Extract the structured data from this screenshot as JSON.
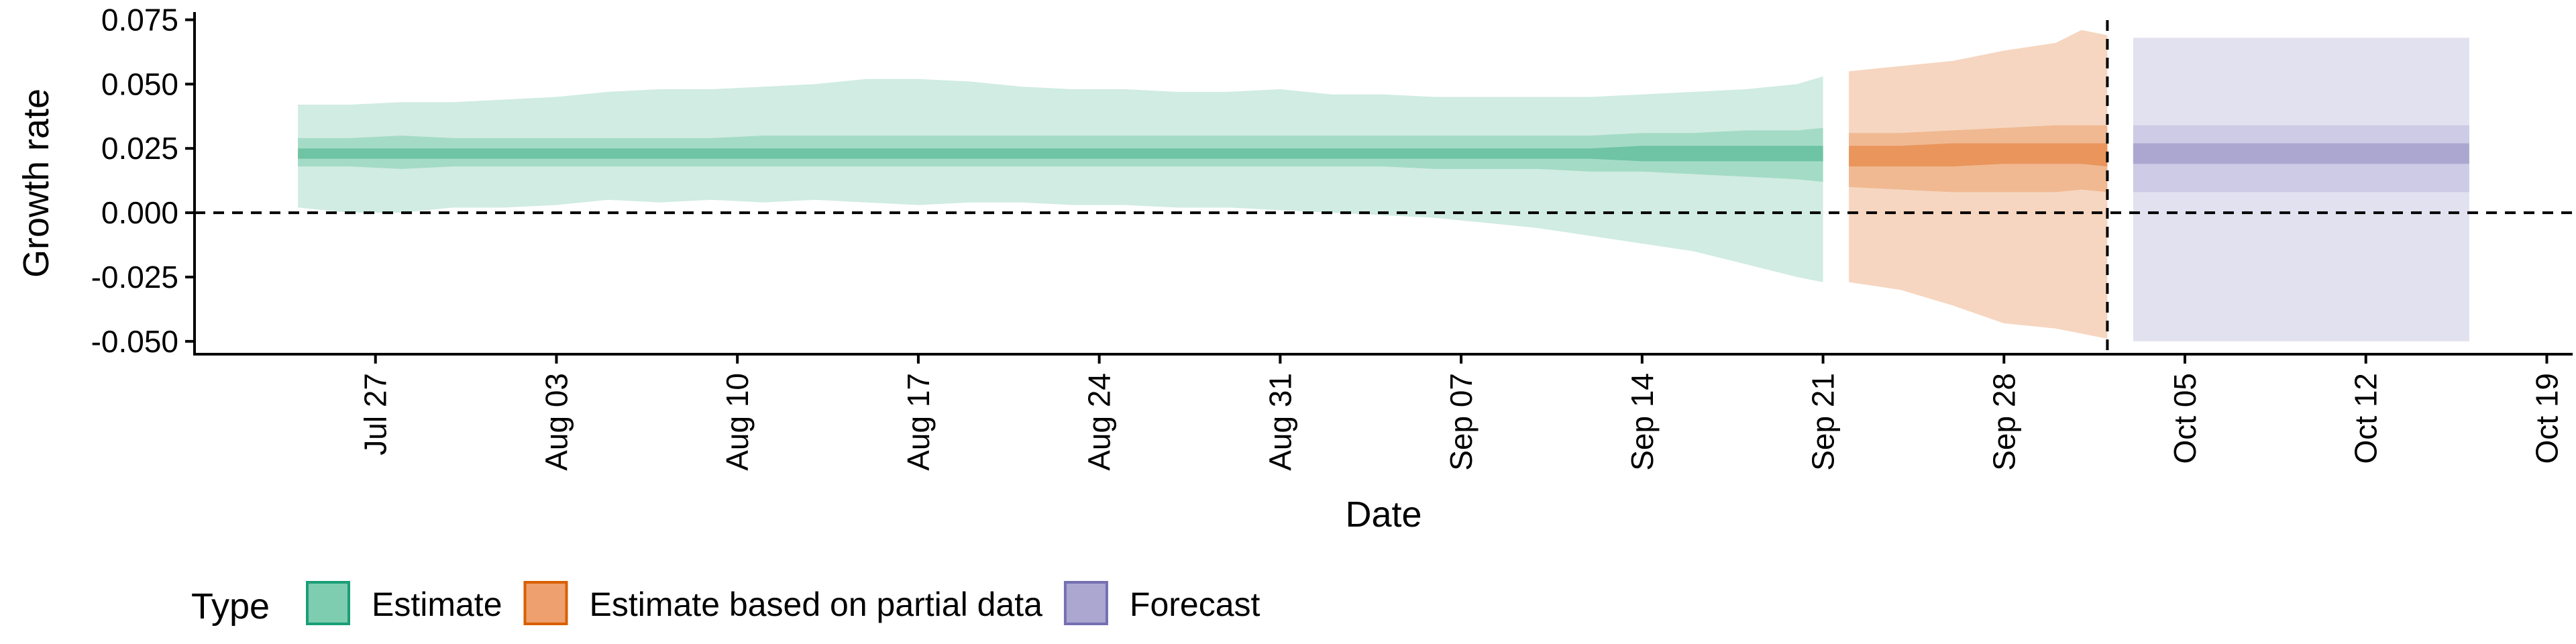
{
  "chart_data": {
    "type": "area",
    "title": "",
    "xlabel": "Date",
    "ylabel": "Growth rate",
    "x_range": [
      "2020-07-20",
      "2020-10-20"
    ],
    "ylim": [
      -0.055,
      0.078
    ],
    "y_ticks": [
      0.075,
      0.05,
      0.025,
      0.0,
      -0.025,
      -0.05
    ],
    "y_tick_labels": [
      "0.075",
      "0.050",
      "0.025",
      "0.000",
      "-0.025",
      "-0.050"
    ],
    "x_ticks": [
      "2020-07-27",
      "2020-08-03",
      "2020-08-10",
      "2020-08-17",
      "2020-08-24",
      "2020-08-31",
      "2020-09-07",
      "2020-09-14",
      "2020-09-21",
      "2020-09-28",
      "2020-10-05",
      "2020-10-12",
      "2020-10-19"
    ],
    "x_tick_labels": [
      "Jul 27",
      "Aug 03",
      "Aug 10",
      "Aug 17",
      "Aug 24",
      "Aug 31",
      "Sep 07",
      "Sep 14",
      "Sep 21",
      "Sep 28",
      "Oct 05",
      "Oct 12",
      "Oct 19"
    ],
    "hline": 0.0,
    "vline": "2020-10-02",
    "grid": false,
    "legend": {
      "title": "Type",
      "position": "bottom",
      "items": [
        {
          "label": "Estimate",
          "fill": "#7fcdb0",
          "stroke": "#1b9e77"
        },
        {
          "label": "Estimate based on partial data",
          "fill": "#eea06e",
          "stroke": "#d95f02"
        },
        {
          "label": "Forecast",
          "fill": "#aca7d0",
          "stroke": "#7570b3"
        }
      ]
    },
    "series": [
      {
        "name": "Estimate",
        "colors": {
          "outer": "#d1ece2",
          "mid": "#a4dbc7",
          "inner": "#6ec4a4"
        },
        "x": [
          "2020-07-24",
          "2020-07-26",
          "2020-07-28",
          "2020-07-30",
          "2020-08-01",
          "2020-08-03",
          "2020-08-05",
          "2020-08-07",
          "2020-08-09",
          "2020-08-11",
          "2020-08-13",
          "2020-08-15",
          "2020-08-17",
          "2020-08-19",
          "2020-08-21",
          "2020-08-23",
          "2020-08-25",
          "2020-08-27",
          "2020-08-29",
          "2020-08-31",
          "2020-09-02",
          "2020-09-04",
          "2020-09-06",
          "2020-09-08",
          "2020-09-10",
          "2020-09-12",
          "2020-09-14",
          "2020-09-16",
          "2020-09-18",
          "2020-09-20",
          "2020-09-21"
        ],
        "upper90": [
          0.042,
          0.042,
          0.043,
          0.043,
          0.044,
          0.045,
          0.047,
          0.048,
          0.048,
          0.049,
          0.05,
          0.052,
          0.052,
          0.051,
          0.049,
          0.048,
          0.048,
          0.047,
          0.047,
          0.048,
          0.046,
          0.046,
          0.045,
          0.045,
          0.045,
          0.045,
          0.046,
          0.047,
          0.048,
          0.05,
          0.053
        ],
        "lower90": [
          0.002,
          0.0,
          0.0,
          0.002,
          0.002,
          0.003,
          0.005,
          0.004,
          0.005,
          0.004,
          0.005,
          0.004,
          0.003,
          0.004,
          0.004,
          0.003,
          0.003,
          0.002,
          0.002,
          0.001,
          0.0,
          -0.001,
          -0.002,
          -0.004,
          -0.006,
          -0.009,
          -0.012,
          -0.015,
          -0.02,
          -0.025,
          -0.027
        ],
        "upper50": [
          0.029,
          0.029,
          0.03,
          0.029,
          0.029,
          0.029,
          0.029,
          0.029,
          0.029,
          0.03,
          0.03,
          0.03,
          0.03,
          0.03,
          0.03,
          0.03,
          0.03,
          0.03,
          0.03,
          0.03,
          0.03,
          0.03,
          0.03,
          0.03,
          0.03,
          0.03,
          0.031,
          0.031,
          0.032,
          0.032,
          0.033
        ],
        "lower50": [
          0.018,
          0.018,
          0.017,
          0.018,
          0.018,
          0.018,
          0.018,
          0.018,
          0.018,
          0.018,
          0.018,
          0.018,
          0.018,
          0.018,
          0.018,
          0.018,
          0.018,
          0.018,
          0.018,
          0.018,
          0.018,
          0.018,
          0.017,
          0.017,
          0.017,
          0.016,
          0.016,
          0.015,
          0.014,
          0.013,
          0.012
        ],
        "upper20": [
          0.025,
          0.025,
          0.025,
          0.025,
          0.025,
          0.025,
          0.025,
          0.025,
          0.025,
          0.025,
          0.025,
          0.025,
          0.025,
          0.025,
          0.025,
          0.025,
          0.025,
          0.025,
          0.025,
          0.025,
          0.025,
          0.025,
          0.025,
          0.025,
          0.025,
          0.025,
          0.026,
          0.026,
          0.026,
          0.026,
          0.026
        ],
        "lower20": [
          0.021,
          0.021,
          0.021,
          0.021,
          0.021,
          0.021,
          0.021,
          0.021,
          0.021,
          0.021,
          0.021,
          0.021,
          0.021,
          0.021,
          0.021,
          0.021,
          0.021,
          0.021,
          0.021,
          0.021,
          0.021,
          0.021,
          0.021,
          0.021,
          0.021,
          0.021,
          0.02,
          0.02,
          0.02,
          0.02,
          0.02
        ]
      },
      {
        "name": "Estimate based on partial data",
        "colors": {
          "outer": "#f6d6c0",
          "mid": "#f0b992",
          "inner": "#e9955c"
        },
        "x": [
          "2020-09-22",
          "2020-09-24",
          "2020-09-26",
          "2020-09-28",
          "2020-09-30",
          "2020-10-01",
          "2020-10-02"
        ],
        "upper90": [
          0.055,
          0.057,
          0.059,
          0.063,
          0.066,
          0.071,
          0.069
        ],
        "lower90": [
          -0.027,
          -0.03,
          -0.036,
          -0.043,
          -0.045,
          -0.047,
          -0.049
        ],
        "upper50": [
          0.031,
          0.031,
          0.032,
          0.033,
          0.034,
          0.034,
          0.034
        ],
        "lower50": [
          0.01,
          0.009,
          0.008,
          0.008,
          0.008,
          0.009,
          0.008
        ],
        "upper20": [
          0.026,
          0.026,
          0.027,
          0.027,
          0.027,
          0.027,
          0.027
        ],
        "lower20": [
          0.018,
          0.018,
          0.018,
          0.019,
          0.019,
          0.019,
          0.018
        ]
      },
      {
        "name": "Forecast",
        "colors": {
          "outer": "#e2e1f0",
          "mid": "#cdcbe5",
          "inner": "#aca7d0"
        },
        "x": [
          "2020-10-03",
          "2020-10-16"
        ],
        "upper90": [
          0.068,
          0.068
        ],
        "lower90": [
          -0.05,
          -0.05
        ],
        "upper50": [
          0.034,
          0.034
        ],
        "lower50": [
          0.008,
          0.008
        ],
        "upper20": [
          0.027,
          0.027
        ],
        "lower20": [
          0.019,
          0.019
        ]
      }
    ]
  }
}
